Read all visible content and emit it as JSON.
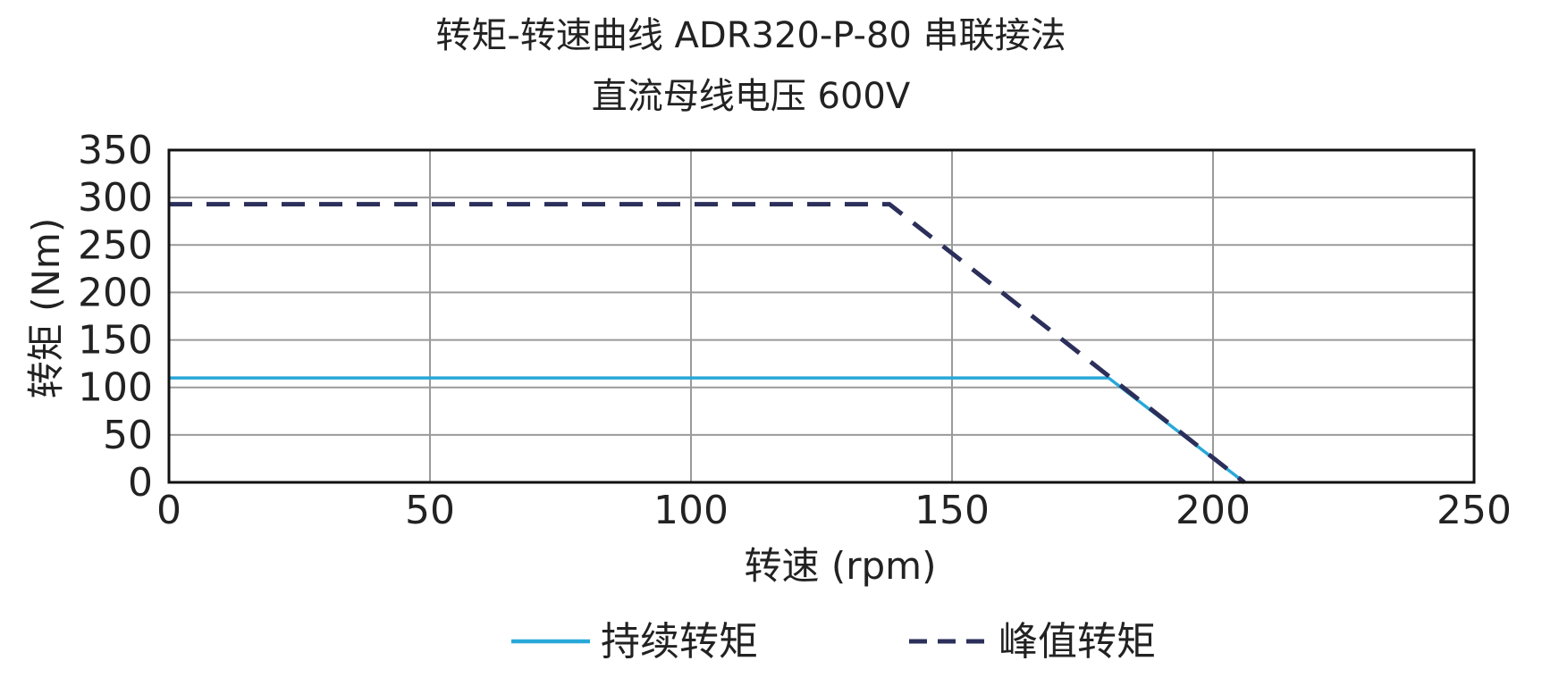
{
  "chart_data": {
    "type": "line",
    "title": "转矩-转速曲线 ADR320-P-80 串联接法",
    "subtitle": "直流母线电压 600V",
    "xlabel": "转速 (rpm)",
    "ylabel": "转矩 (Nm)",
    "xlim": [
      0,
      250
    ],
    "ylim": [
      0,
      350
    ],
    "xticks": [
      0,
      50,
      100,
      150,
      200,
      250
    ],
    "yticks": [
      0,
      50,
      100,
      150,
      200,
      250,
      300,
      350
    ],
    "grid": true,
    "legend_position": "bottom",
    "series": [
      {
        "name": "持续转矩",
        "style": "solid",
        "color": "#29a8d8",
        "points": [
          [
            0,
            110
          ],
          [
            180,
            110
          ],
          [
            206,
            0
          ]
        ]
      },
      {
        "name": "峰值转矩",
        "style": "dashed",
        "color": "#2b2f5a",
        "points": [
          [
            0,
            293
          ],
          [
            138,
            293
          ],
          [
            206,
            0
          ]
        ]
      }
    ]
  }
}
